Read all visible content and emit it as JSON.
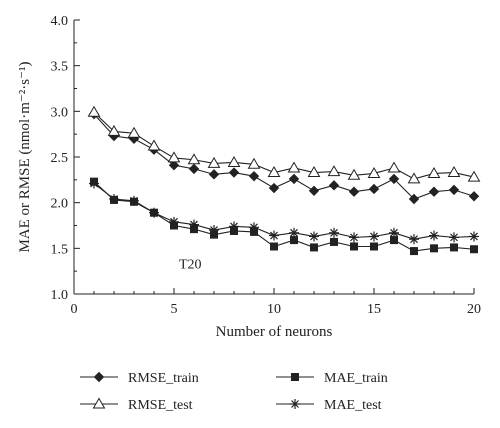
{
  "chart_data": {
    "type": "line",
    "ylabel": "MAE or RMSE (nmol·m⁻²·s⁻¹)",
    "xlabel": "Number of neurons",
    "xlim": [
      0,
      20
    ],
    "ylim": [
      1.0,
      4.0
    ],
    "xticks": [
      0,
      5,
      10,
      15,
      20
    ],
    "yticks": [
      "1.0",
      "1.5",
      "2.0",
      "2.5",
      "3.0",
      "3.5",
      "4.0"
    ],
    "annotation": "T20",
    "grid": false,
    "legend_position": "bottom",
    "x": [
      1,
      2,
      3,
      4,
      5,
      6,
      7,
      8,
      9,
      10,
      11,
      12,
      13,
      14,
      15,
      16,
      17,
      18,
      19,
      20
    ],
    "series": [
      {
        "name": "RMSE_train",
        "marker": "diamond-filled",
        "values": [
          2.97,
          2.73,
          2.7,
          2.58,
          2.41,
          2.37,
          2.31,
          2.33,
          2.29,
          2.16,
          2.26,
          2.13,
          2.19,
          2.12,
          2.15,
          2.26,
          2.04,
          2.12,
          2.14,
          2.07
        ]
      },
      {
        "name": "MAE_train",
        "marker": "square-filled",
        "values": [
          2.23,
          2.03,
          2.01,
          1.89,
          1.75,
          1.71,
          1.65,
          1.69,
          1.68,
          1.52,
          1.59,
          1.51,
          1.57,
          1.52,
          1.52,
          1.59,
          1.47,
          1.5,
          1.51,
          1.49
        ]
      },
      {
        "name": "RMSE_test",
        "marker": "triangle-open",
        "values": [
          2.99,
          2.78,
          2.76,
          2.62,
          2.49,
          2.47,
          2.43,
          2.44,
          2.42,
          2.33,
          2.38,
          2.33,
          2.34,
          2.3,
          2.32,
          2.38,
          2.26,
          2.32,
          2.33,
          2.28
        ]
      },
      {
        "name": "MAE_test",
        "marker": "asterisk",
        "values": [
          2.21,
          2.04,
          2.02,
          1.89,
          1.79,
          1.76,
          1.7,
          1.74,
          1.73,
          1.64,
          1.67,
          1.63,
          1.67,
          1.62,
          1.63,
          1.67,
          1.6,
          1.64,
          1.62,
          1.63
        ]
      }
    ],
    "colors": {
      "line": "#222222"
    }
  }
}
